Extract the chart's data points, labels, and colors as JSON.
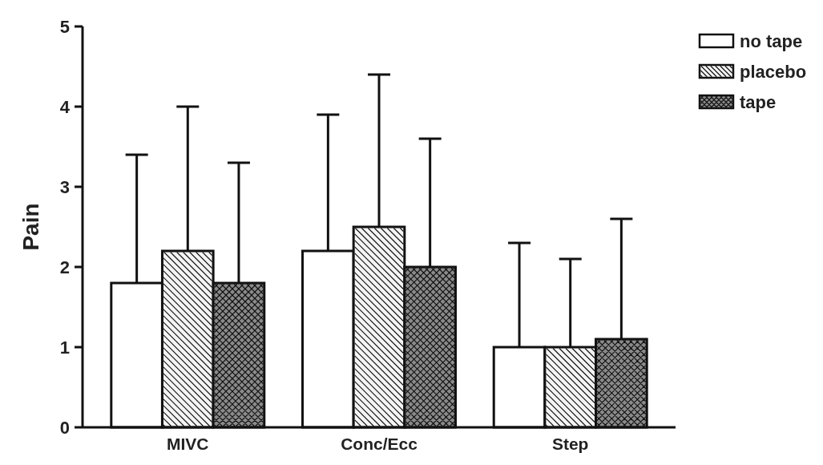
{
  "chart_data": {
    "type": "bar",
    "ylabel": "Pain",
    "categories": [
      "MIVC",
      "Conc/Ecc",
      "Step"
    ],
    "series": [
      {
        "name": "no tape",
        "color": "#ffffff",
        "values": [
          1.8,
          2.2,
          1.0
        ],
        "errors": [
          [
            1.8,
            3.4
          ],
          [
            2.2,
            3.9
          ],
          [
            1.0,
            2.3
          ]
        ]
      },
      {
        "name": "placebo",
        "color": "#f4f4f4",
        "values": [
          2.2,
          2.5,
          1.0
        ],
        "errors": [
          [
            2.2,
            4.0
          ],
          [
            2.5,
            4.4
          ],
          [
            1.0,
            2.1
          ]
        ]
      },
      {
        "name": "tape",
        "color": "#8a8a8a",
        "values": [
          1.8,
          2.0,
          1.1
        ],
        "errors": [
          [
            1.8,
            3.3
          ],
          [
            2.0,
            3.6
          ],
          [
            1.1,
            2.6
          ]
        ]
      }
    ],
    "ylim": [
      0,
      5
    ],
    "yticks": [
      0,
      1,
      2,
      3,
      4,
      5
    ],
    "grid": false,
    "legend": "top right"
  }
}
